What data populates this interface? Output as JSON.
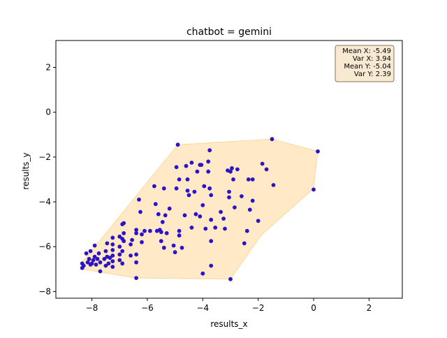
{
  "chart_data": {
    "type": "scatter",
    "title": "chatbot = gemini",
    "xlabel": "results_x",
    "ylabel": "results_y",
    "xlim": [
      -9.3,
      3.2
    ],
    "ylim": [
      -8.3,
      3.2
    ],
    "xticks": [
      -8,
      -6,
      -4,
      -2,
      0,
      2
    ],
    "yticks": [
      -8,
      -6,
      -4,
      -2,
      0,
      2
    ],
    "tick_labels_x": [
      "−8",
      "−6",
      "−4",
      "−2",
      "0",
      "2"
    ],
    "tick_labels_y": [
      "−8",
      "−6",
      "−4",
      "−2",
      "0",
      "2"
    ],
    "grid": false,
    "colors": {
      "points": "#2b14c8",
      "hull_fill": "#ffe9c7",
      "hull_edge": "#ffd79a",
      "stats_box_bg": "#f8e9d2",
      "stats_box_edge": "#8b7355"
    },
    "stats_box": {
      "placement": "top-right",
      "lines": [
        "Mean X: -5.49",
        "Var X: 3.94",
        "Mean Y: -5.04",
        "Var Y: 2.39"
      ]
    },
    "hull": [
      [
        -4.9,
        -1.45
      ],
      [
        -1.5,
        -1.2
      ],
      [
        0.15,
        -1.75
      ],
      [
        0.0,
        -3.4
      ],
      [
        -1.9,
        -5.5
      ],
      [
        -3.0,
        -7.45
      ],
      [
        -6.4,
        -7.4
      ],
      [
        -8.35,
        -7.0
      ],
      [
        -8.35,
        -6.7
      ]
    ],
    "points": [
      [
        -8.35,
        -6.75
      ],
      [
        -8.35,
        -6.95
      ],
      [
        -8.3,
        -6.85
      ],
      [
        -8.2,
        -6.3
      ],
      [
        -8.15,
        -6.7
      ],
      [
        -8.1,
        -6.55
      ],
      [
        -8.05,
        -6.2
      ],
      [
        -8.05,
        -6.8
      ],
      [
        -8.0,
        -6.75
      ],
      [
        -7.95,
        -6.6
      ],
      [
        -7.9,
        -5.95
      ],
      [
        -7.9,
        -6.45
      ],
      [
        -7.85,
        -6.8
      ],
      [
        -7.8,
        -6.55
      ],
      [
        -7.75,
        -6.3
      ],
      [
        -7.7,
        -6.7
      ],
      [
        -7.7,
        -7.1
      ],
      [
        -7.55,
        -6.55
      ],
      [
        -7.5,
        -6.2
      ],
      [
        -7.5,
        -6.85
      ],
      [
        -7.45,
        -5.85
      ],
      [
        -7.45,
        -6.45
      ],
      [
        -7.4,
        -6.75
      ],
      [
        -7.35,
        -6.5
      ],
      [
        -7.25,
        -5.6
      ],
      [
        -7.25,
        -5.9
      ],
      [
        -7.25,
        -6.15
      ],
      [
        -7.25,
        -6.4
      ],
      [
        -7.25,
        -6.65
      ],
      [
        -7.25,
        -6.9
      ],
      [
        -7.0,
        -5.55
      ],
      [
        -7.0,
        -6.0
      ],
      [
        -7.0,
        -6.35
      ],
      [
        -7.0,
        -6.6
      ],
      [
        -6.9,
        -5.0
      ],
      [
        -6.9,
        -5.65
      ],
      [
        -6.9,
        -6.2
      ],
      [
        -6.9,
        -6.75
      ],
      [
        -6.85,
        -4.95
      ],
      [
        -6.85,
        -5.4
      ],
      [
        -6.85,
        -5.75
      ],
      [
        -6.6,
        -5.9
      ],
      [
        -6.6,
        -6.4
      ],
      [
        -6.55,
        -5.7
      ],
      [
        -6.4,
        -5.25
      ],
      [
        -6.4,
        -5.4
      ],
      [
        -6.4,
        -6.35
      ],
      [
        -6.4,
        -6.7
      ],
      [
        -6.4,
        -7.4
      ],
      [
        -6.3,
        -3.9
      ],
      [
        -6.25,
        -4.45
      ],
      [
        -6.2,
        -5.45
      ],
      [
        -6.2,
        -5.8
      ],
      [
        -6.1,
        -5.3
      ],
      [
        -5.9,
        -5.3
      ],
      [
        -5.75,
        -3.3
      ],
      [
        -5.7,
        -4.1
      ],
      [
        -5.65,
        -5.3
      ],
      [
        -5.6,
        -4.55
      ],
      [
        -5.55,
        -5.25
      ],
      [
        -5.5,
        -5.35
      ],
      [
        -5.5,
        -5.75
      ],
      [
        -5.45,
        -4.9
      ],
      [
        -5.4,
        -3.4
      ],
      [
        -5.4,
        -6.05
      ],
      [
        -5.35,
        -4.6
      ],
      [
        -5.3,
        -5.4
      ],
      [
        -5.2,
        -4.3
      ],
      [
        -5.05,
        -5.95
      ],
      [
        -5.0,
        -6.25
      ],
      [
        -4.95,
        -2.45
      ],
      [
        -4.95,
        -3.4
      ],
      [
        -4.9,
        -1.45
      ],
      [
        -4.85,
        -3.0
      ],
      [
        -4.85,
        -5.3
      ],
      [
        -4.85,
        -5.5
      ],
      [
        -4.75,
        -6.05
      ],
      [
        -4.65,
        -4.6
      ],
      [
        -4.6,
        -2.4
      ],
      [
        -4.55,
        -3.0
      ],
      [
        -4.55,
        -3.5
      ],
      [
        -4.5,
        -3.7
      ],
      [
        -4.4,
        -2.25
      ],
      [
        -4.4,
        -5.15
      ],
      [
        -4.3,
        -3.55
      ],
      [
        -4.25,
        -4.55
      ],
      [
        -4.2,
        -2.65
      ],
      [
        -4.1,
        -2.35
      ],
      [
        -4.1,
        -4.65
      ],
      [
        -4.05,
        -2.35
      ],
      [
        -4.0,
        -4.15
      ],
      [
        -4.0,
        -7.2
      ],
      [
        -3.95,
        -3.3
      ],
      [
        -3.9,
        -5.2
      ],
      [
        -3.8,
        -2.2
      ],
      [
        -3.8,
        -2.65
      ],
      [
        -3.75,
        -1.7
      ],
      [
        -3.75,
        -3.4
      ],
      [
        -3.7,
        -3.7
      ],
      [
        -3.7,
        -4.8
      ],
      [
        -3.7,
        -5.75
      ],
      [
        -3.7,
        -6.85
      ],
      [
        -3.55,
        -5.15
      ],
      [
        -3.35,
        -4.45
      ],
      [
        -3.25,
        -4.75
      ],
      [
        -3.2,
        -5.2
      ],
      [
        -3.1,
        -2.6
      ],
      [
        -3.05,
        -3.55
      ],
      [
        -3.05,
        -3.8
      ],
      [
        -3.0,
        -2.65
      ],
      [
        -3.0,
        -7.45
      ],
      [
        -2.95,
        -2.5
      ],
      [
        -2.9,
        -3.0
      ],
      [
        -2.85,
        -4.25
      ],
      [
        -2.75,
        -2.55
      ],
      [
        -2.6,
        -3.75
      ],
      [
        -2.5,
        -5.85
      ],
      [
        -2.4,
        -5.3
      ],
      [
        -2.35,
        -3.0
      ],
      [
        -2.3,
        -4.35
      ],
      [
        -2.2,
        -3.0
      ],
      [
        -2.2,
        -3.95
      ],
      [
        -2.0,
        -4.85
      ],
      [
        -1.85,
        -2.3
      ],
      [
        -1.7,
        -2.55
      ],
      [
        -1.5,
        -1.2
      ],
      [
        -1.45,
        -3.25
      ],
      [
        0.0,
        -3.45
      ],
      [
        0.15,
        -1.75
      ]
    ]
  }
}
